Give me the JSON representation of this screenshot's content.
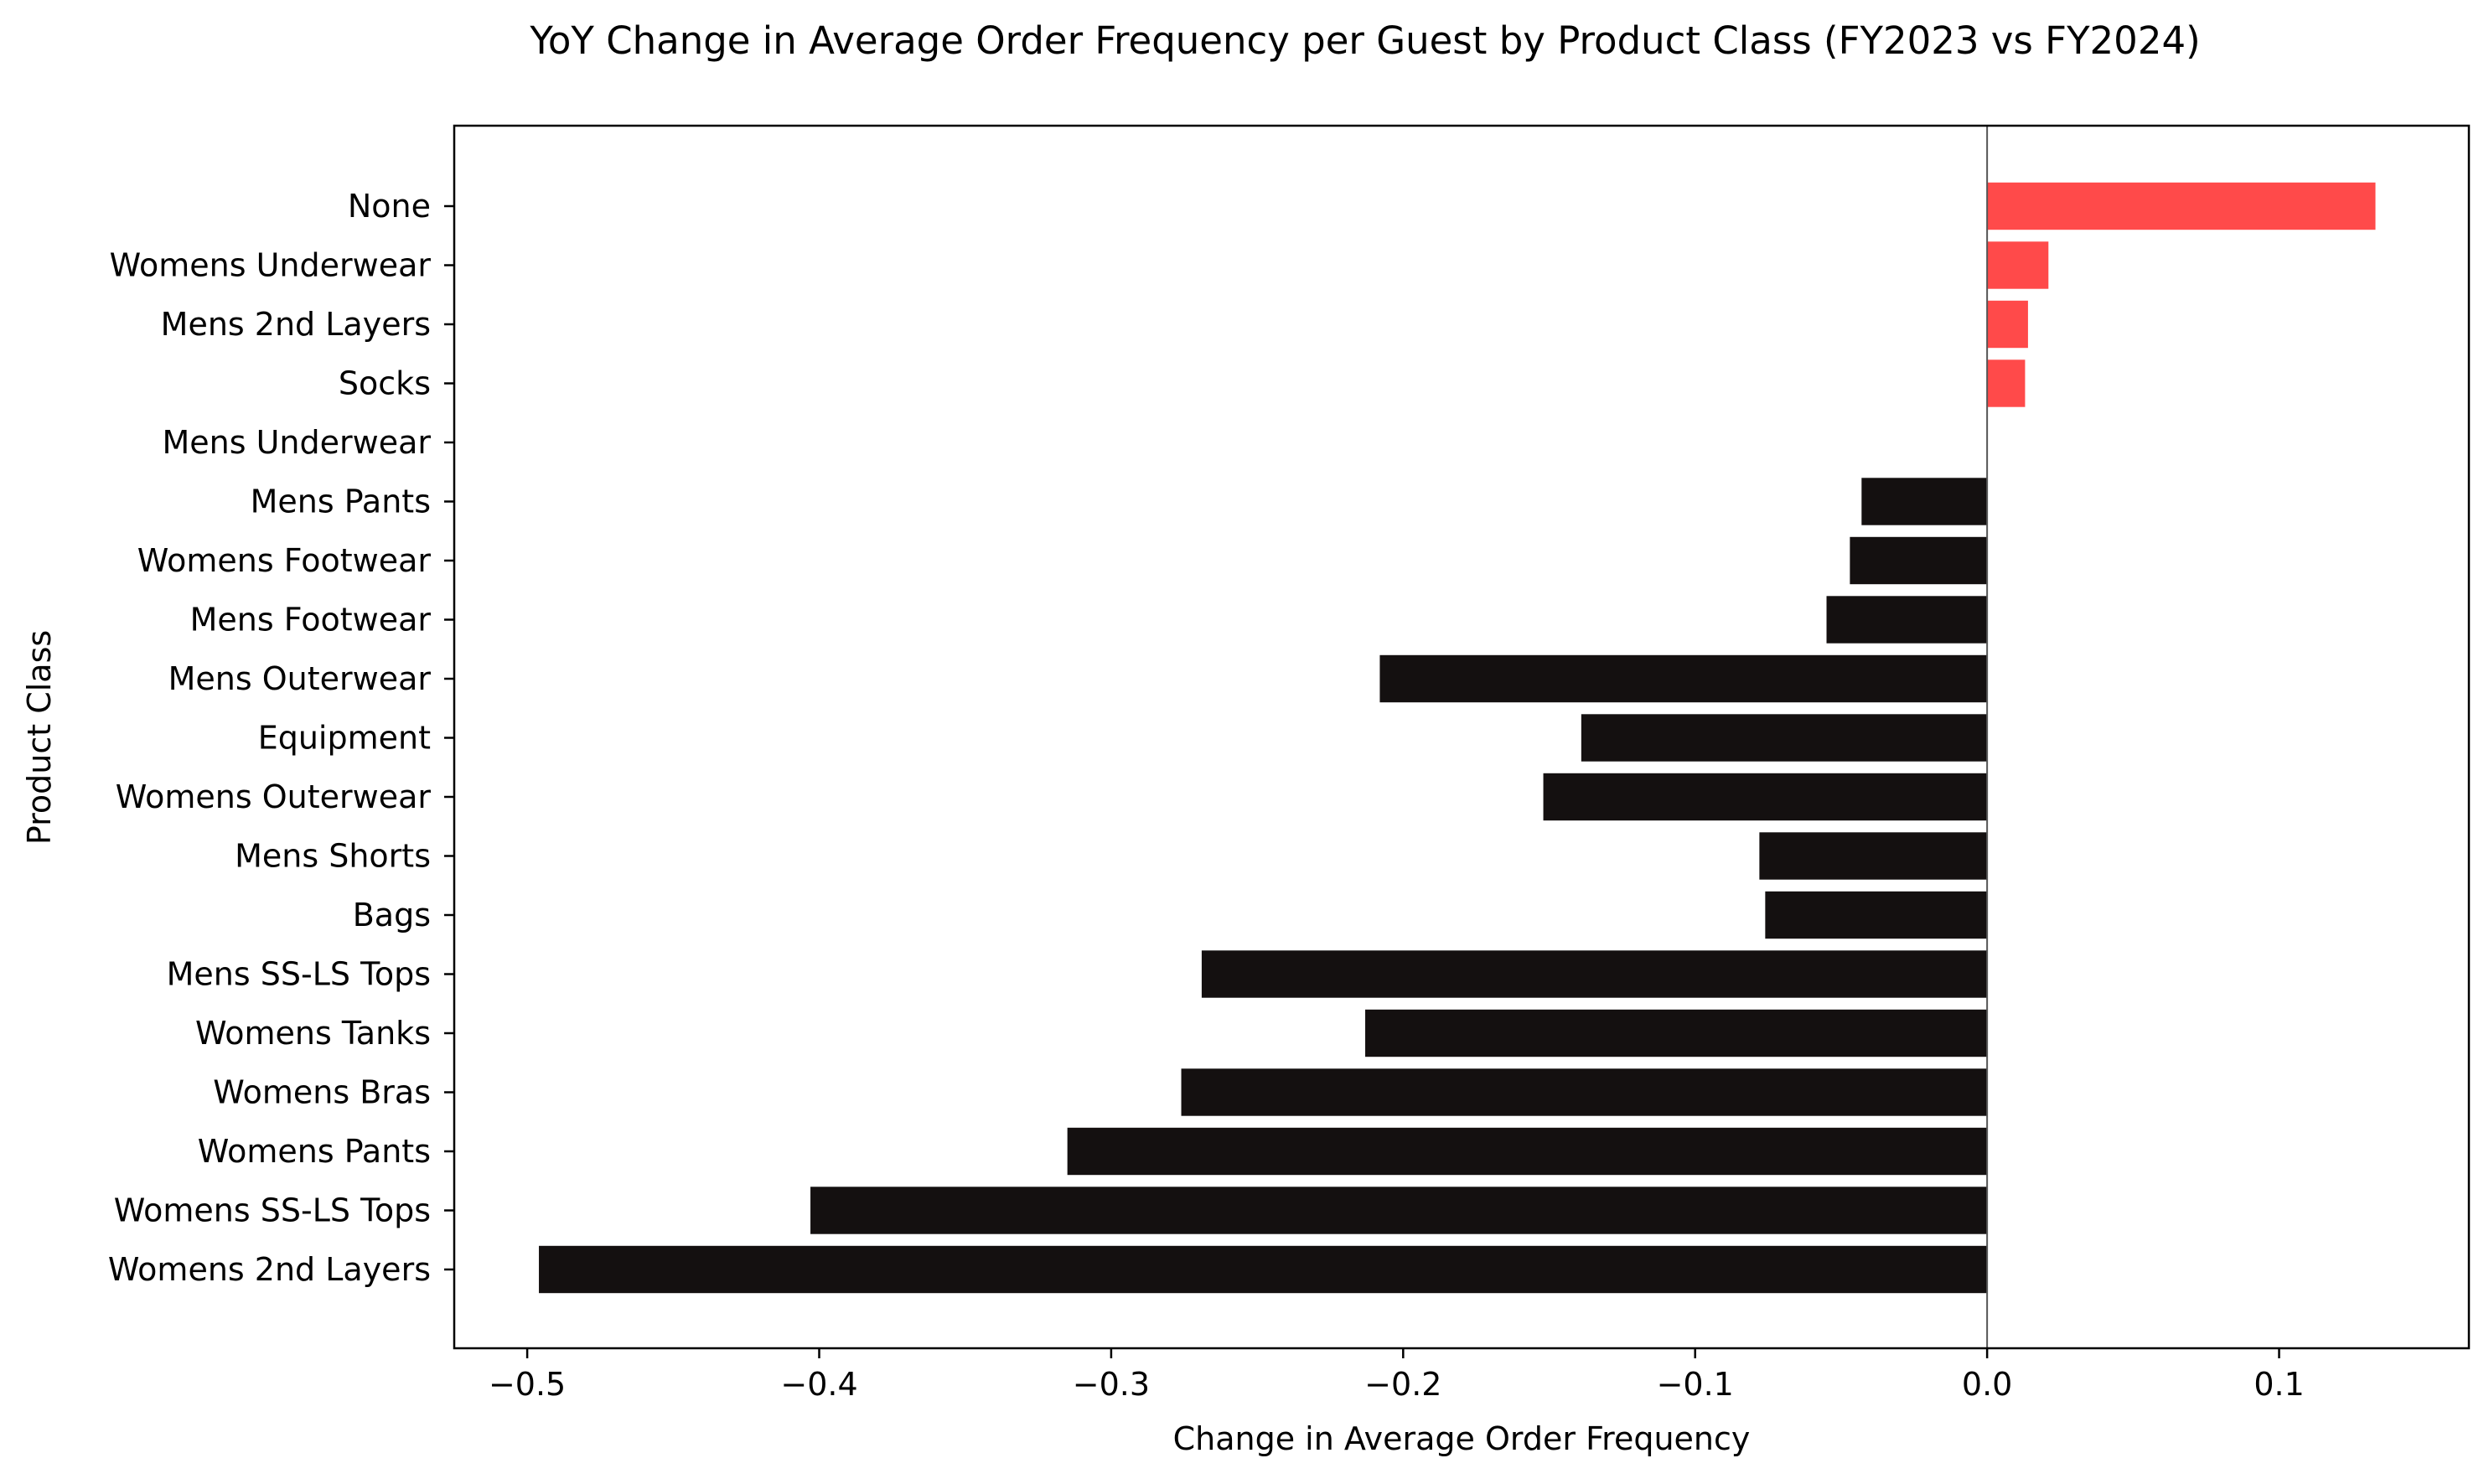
{
  "chart_data": {
    "type": "bar",
    "orientation": "horizontal",
    "title": "YoY Change in Average Order Frequency per Guest by Product Class (FY2023 vs FY2024)",
    "xlabel": "Change in Average Order Frequency",
    "ylabel": "Product Class",
    "xlim": [
      -0.525,
      0.165
    ],
    "xticks": [
      -0.5,
      -0.4,
      -0.3,
      -0.2,
      -0.1,
      0.0,
      0.1
    ],
    "xtick_labels": [
      "−0.5",
      "−0.4",
      "−0.3",
      "−0.2",
      "−0.1",
      "0.0",
      "0.1"
    ],
    "grid": false,
    "zero_line": true,
    "colors": {
      "positive": "#ff4a4a",
      "negative": "#141010",
      "zero_line": "#555555",
      "axes": "#000000"
    },
    "categories": [
      "None",
      "Womens Underwear",
      "Mens 2nd Layers",
      "Socks",
      "Mens Underwear",
      "Mens Pants",
      "Womens Footwear",
      "Mens Footwear",
      "Mens Outerwear",
      "Equipment",
      "Womens Outerwear",
      "Mens Shorts",
      "Bags",
      "Mens SS-LS Tops",
      "Womens Tanks",
      "Womens Bras",
      "Womens Pants",
      "Womens SS-LS Tops",
      "Womens 2nd Layers"
    ],
    "values": [
      0.133,
      0.021,
      0.014,
      0.013,
      0.0,
      -0.043,
      -0.047,
      -0.055,
      -0.208,
      -0.139,
      -0.152,
      -0.078,
      -0.076,
      -0.269,
      -0.213,
      -0.276,
      -0.315,
      -0.403,
      -0.496
    ]
  }
}
